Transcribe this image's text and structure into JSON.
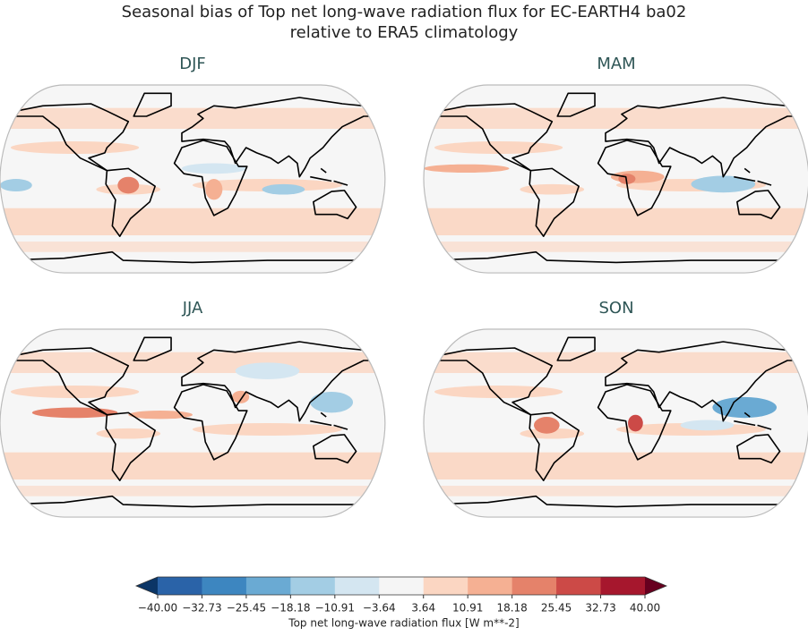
{
  "title_lines": [
    "Seasonal bias of Top net long-wave radiation flux for EC-EARTH4 ba02",
    "relative to ERA5 climatology"
  ],
  "panels": [
    {
      "title": "DJF"
    },
    {
      "title": "MAM"
    },
    {
      "title": "JJA"
    },
    {
      "title": "SON"
    }
  ],
  "colorbar": {
    "label": "Top net long-wave radiation flux [W m**-2]",
    "ticks": [
      {
        "value": -40,
        "label": "−40.00"
      },
      {
        "value": -32.73,
        "label": "−32.73"
      },
      {
        "value": -25.45,
        "label": "−25.45"
      },
      {
        "value": -18.18,
        "label": "−18.18"
      },
      {
        "value": -10.91,
        "label": "−10.91"
      },
      {
        "value": -3.64,
        "label": "−3.64"
      },
      {
        "value": 3.64,
        "label": "3.64"
      },
      {
        "value": 10.91,
        "label": "10.91"
      },
      {
        "value": 18.18,
        "label": "18.18"
      },
      {
        "value": 25.45,
        "label": "25.45"
      },
      {
        "value": 32.73,
        "label": "32.73"
      },
      {
        "value": 40,
        "label": "40.00"
      }
    ],
    "colors": [
      "#2a63a8",
      "#3d86c0",
      "#6aaad3",
      "#a3cde4",
      "#d4e6f1",
      "#f5f5f5",
      "#fbd6c2",
      "#f5b093",
      "#e5826a",
      "#cc4a47",
      "#a6172d"
    ],
    "under": "#0b3566",
    "over": "#67001f"
  }
}
